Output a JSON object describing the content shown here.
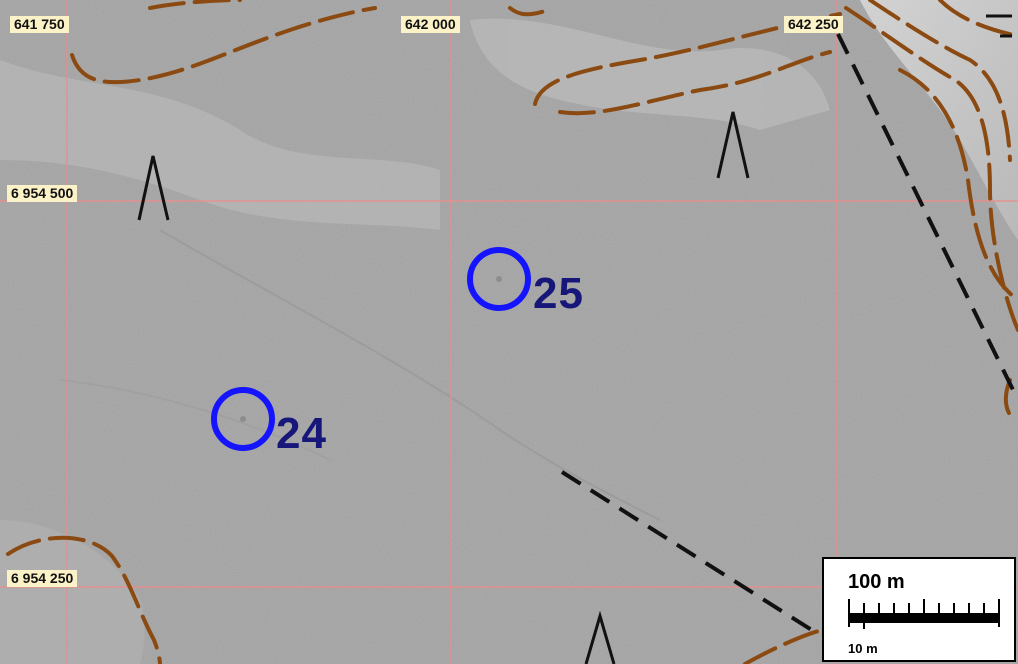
{
  "map": {
    "grid": {
      "eastings": [
        "641 750",
        "642 000",
        "642 250"
      ],
      "northings": [
        "6 954 500",
        "6 954 250"
      ]
    },
    "sites": [
      {
        "id": "24",
        "label": "24"
      },
      {
        "id": "25",
        "label": "25"
      }
    ],
    "scale": {
      "main_label": "100 m",
      "sub_label": "10 m"
    },
    "colors": {
      "hillshade": "#a9a9a9",
      "grid_line": "#ef8a8a",
      "contour": "#8a4a12",
      "site_marker": "#1414ff",
      "site_label": "#17177a",
      "path_dashed": "#111111",
      "label_background": "#fbf2c8"
    },
    "features": {
      "slope_symbols": [
        "slope-marker",
        "slope-marker",
        "slope-marker"
      ],
      "track": "dashed-track"
    }
  }
}
